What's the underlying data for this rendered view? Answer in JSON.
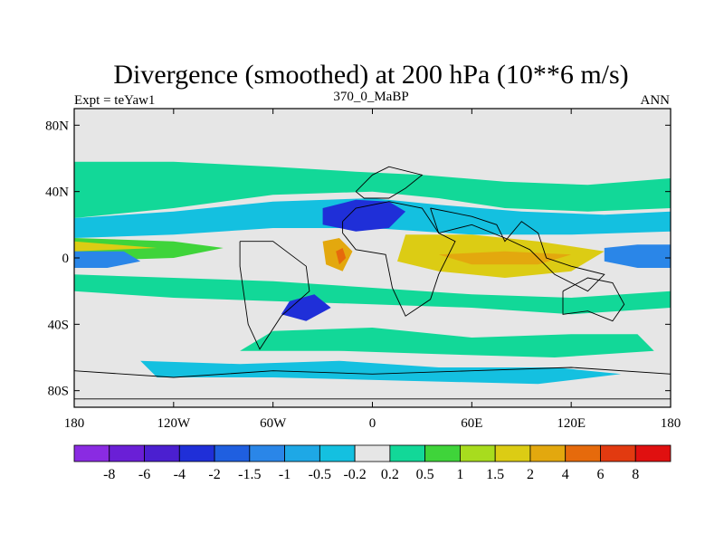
{
  "chart_data": {
    "type": "heatmap",
    "title": "Divergence (smoothed) at 200 hPa (10**6 m/s)",
    "subtitle_left": "Expt = teYaw1",
    "subtitle_center": "370_0_MaBP",
    "subtitle_right": "ANN",
    "x_range": [
      -180,
      180
    ],
    "y_range": [
      -90,
      90
    ],
    "x_ticks": [
      {
        "value": -180,
        "label": "180"
      },
      {
        "value": -120,
        "label": "120W"
      },
      {
        "value": -60,
        "label": "60W"
      },
      {
        "value": 0,
        "label": "0"
      },
      {
        "value": 60,
        "label": "60E"
      },
      {
        "value": 120,
        "label": "120E"
      },
      {
        "value": 180,
        "label": "180"
      }
    ],
    "y_ticks": [
      {
        "value": 80,
        "label": "80N"
      },
      {
        "value": 40,
        "label": "40N"
      },
      {
        "value": 0,
        "label": "0"
      },
      {
        "value": -40,
        "label": "40S"
      },
      {
        "value": -80,
        "label": "80S"
      }
    ],
    "colorbar": {
      "colors": [
        "#8a2be2",
        "#6a1fd6",
        "#4b1fd0",
        "#1f2fd8",
        "#1f5fe0",
        "#2a86e8",
        "#1ea8e6",
        "#14c0e0",
        "#e6e6e6",
        "#12d898",
        "#3fd43a",
        "#a8dc1e",
        "#dccc14",
        "#e3a80e",
        "#e66a0c",
        "#e23a10",
        "#e01010"
      ],
      "labels": [
        "-8",
        "-6",
        "-4",
        "-2",
        "-1.5",
        "-1",
        "-0.5",
        "-0.2",
        "0.2",
        "0.5",
        "1",
        "1.5",
        "2",
        "4",
        "6",
        "8"
      ]
    },
    "features": [
      {
        "name": "northern-green-band",
        "level": 0.3,
        "points": [
          [
            -180,
            58
          ],
          [
            -120,
            58
          ],
          [
            -60,
            55
          ],
          [
            -10,
            52
          ],
          [
            30,
            50
          ],
          [
            80,
            46
          ],
          [
            130,
            44
          ],
          [
            180,
            48
          ],
          [
            180,
            30
          ],
          [
            130,
            28
          ],
          [
            80,
            30
          ],
          [
            40,
            36
          ],
          [
            0,
            40
          ],
          [
            -60,
            38
          ],
          [
            -120,
            30
          ],
          [
            -180,
            24
          ]
        ]
      },
      {
        "name": "northern-cyan-band",
        "level": -0.3,
        "points": [
          [
            -180,
            24
          ],
          [
            -120,
            28
          ],
          [
            -60,
            34
          ],
          [
            0,
            36
          ],
          [
            40,
            32
          ],
          [
            90,
            28
          ],
          [
            140,
            26
          ],
          [
            180,
            28
          ],
          [
            180,
            16
          ],
          [
            120,
            14
          ],
          [
            60,
            14
          ],
          [
            0,
            18
          ],
          [
            -60,
            18
          ],
          [
            -120,
            14
          ],
          [
            -180,
            12
          ]
        ]
      },
      {
        "name": "north-atlantic-blue",
        "level": -2,
        "points": [
          [
            -30,
            30
          ],
          [
            -10,
            35
          ],
          [
            10,
            34
          ],
          [
            20,
            28
          ],
          [
            10,
            18
          ],
          [
            -10,
            16
          ],
          [
            -30,
            20
          ]
        ]
      },
      {
        "name": "equatorial-green",
        "level": 0.6,
        "points": [
          [
            -180,
            12
          ],
          [
            -120,
            10
          ],
          [
            -90,
            6
          ],
          [
            -120,
            0
          ],
          [
            -180,
            -2
          ]
        ]
      },
      {
        "name": "equatorial-yellow",
        "level": 1.7,
        "points": [
          [
            -180,
            10
          ],
          [
            -130,
            6
          ],
          [
            -180,
            4
          ]
        ]
      },
      {
        "name": "pacific-east-blue",
        "level": -1.2,
        "points": [
          [
            140,
            6
          ],
          [
            160,
            8
          ],
          [
            180,
            8
          ],
          [
            180,
            -6
          ],
          [
            160,
            -6
          ],
          [
            140,
            -2
          ]
        ]
      },
      {
        "name": "pacific-west-blue",
        "level": -1.2,
        "points": [
          [
            -180,
            4
          ],
          [
            -150,
            4
          ],
          [
            -140,
            -2
          ],
          [
            -160,
            -6
          ],
          [
            -180,
            -6
          ]
        ]
      },
      {
        "name": "indian-ocean-yellow",
        "level": 1.8,
        "points": [
          [
            20,
            14
          ],
          [
            60,
            14
          ],
          [
            100,
            10
          ],
          [
            140,
            4
          ],
          [
            120,
            -8
          ],
          [
            80,
            -12
          ],
          [
            40,
            -8
          ],
          [
            15,
            -2
          ]
        ]
      },
      {
        "name": "indian-ocean-orange",
        "level": 4,
        "points": [
          [
            40,
            2
          ],
          [
            80,
            4
          ],
          [
            120,
            2
          ],
          [
            100,
            -4
          ],
          [
            60,
            -4
          ]
        ]
      },
      {
        "name": "africa-orange",
        "level": 4,
        "points": [
          [
            -30,
            10
          ],
          [
            -20,
            12
          ],
          [
            -12,
            4
          ],
          [
            -18,
            -8
          ],
          [
            -28,
            -4
          ]
        ]
      },
      {
        "name": "africa-red",
        "level": 6,
        "points": [
          [
            -22,
            4
          ],
          [
            -18,
            6
          ],
          [
            -16,
            0
          ],
          [
            -20,
            -4
          ]
        ]
      },
      {
        "name": "south-pacific-green",
        "level": 0.4,
        "points": [
          [
            -180,
            -10
          ],
          [
            -120,
            -12
          ],
          [
            -60,
            -14
          ],
          [
            0,
            -18
          ],
          [
            60,
            -22
          ],
          [
            120,
            -24
          ],
          [
            180,
            -20
          ],
          [
            180,
            -30
          ],
          [
            120,
            -34
          ],
          [
            60,
            -30
          ],
          [
            0,
            -28
          ],
          [
            -60,
            -26
          ],
          [
            -120,
            -24
          ],
          [
            -180,
            -20
          ]
        ]
      },
      {
        "name": "south-atlantic-blue",
        "level": -2,
        "points": [
          [
            -50,
            -26
          ],
          [
            -35,
            -22
          ],
          [
            -25,
            -30
          ],
          [
            -40,
            -38
          ],
          [
            -55,
            -34
          ]
        ]
      },
      {
        "name": "southern-ocean-green",
        "level": 0.5,
        "points": [
          [
            -60,
            -44
          ],
          [
            0,
            -42
          ],
          [
            60,
            -48
          ],
          [
            120,
            -46
          ],
          [
            160,
            -46
          ],
          [
            170,
            -56
          ],
          [
            110,
            -60
          ],
          [
            40,
            -58
          ],
          [
            -20,
            -56
          ],
          [
            -80,
            -56
          ]
        ]
      },
      {
        "name": "southern-ocean-cyan",
        "level": -0.4,
        "points": [
          [
            -140,
            -62
          ],
          [
            -80,
            -64
          ],
          [
            -20,
            -62
          ],
          [
            40,
            -66
          ],
          [
            110,
            -66
          ],
          [
            150,
            -70
          ],
          [
            100,
            -76
          ],
          [
            20,
            -74
          ],
          [
            -60,
            -72
          ],
          [
            -130,
            -72
          ]
        ]
      }
    ]
  }
}
